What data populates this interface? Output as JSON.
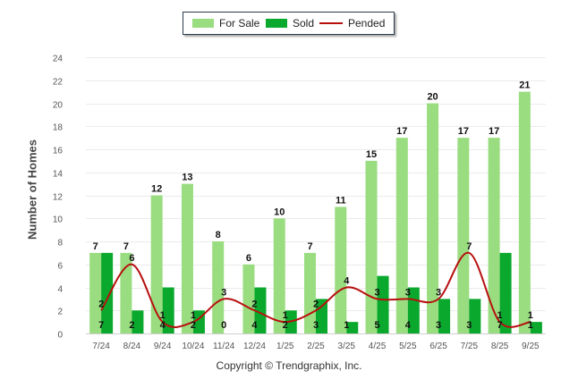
{
  "chart_data": {
    "type": "bar",
    "title": "",
    "xlabel": "",
    "ylabel": "Number of Homes",
    "ylim": [
      0,
      24
    ],
    "yticks": [
      "0",
      "2",
      "4",
      "6",
      "8",
      "10",
      "12",
      "14",
      "16",
      "18",
      "20",
      "22",
      "24"
    ],
    "grid": true,
    "legend_position": "top-center",
    "categories": [
      "7/24",
      "8/24",
      "9/24",
      "10/24",
      "11/24",
      "12/24",
      "1/25",
      "2/25",
      "3/25",
      "4/25",
      "5/25",
      "6/25",
      "7/25",
      "8/25",
      "9/25"
    ],
    "series": [
      {
        "name": "For Sale",
        "type": "bar",
        "color": "#99dd80",
        "values": [
          7,
          7,
          12,
          13,
          8,
          6,
          10,
          7,
          11,
          15,
          17,
          20,
          17,
          17,
          21
        ]
      },
      {
        "name": "Sold",
        "type": "bar",
        "color": "#0aa82c",
        "values": [
          7,
          2,
          4,
          2,
          0,
          4,
          2,
          3,
          1,
          5,
          4,
          3,
          3,
          7,
          1
        ]
      },
      {
        "name": "Pended",
        "type": "line",
        "color": "#b80f0f",
        "values": [
          2,
          6,
          1,
          1,
          3,
          2,
          1,
          2,
          4,
          3,
          3,
          3,
          7,
          1,
          1
        ]
      }
    ]
  },
  "legend": {
    "for_sale": "For Sale",
    "sold": "Sold",
    "pended": "Pended"
  },
  "footer": {
    "copyright": "Copyright © Trendgraphix, Inc."
  }
}
